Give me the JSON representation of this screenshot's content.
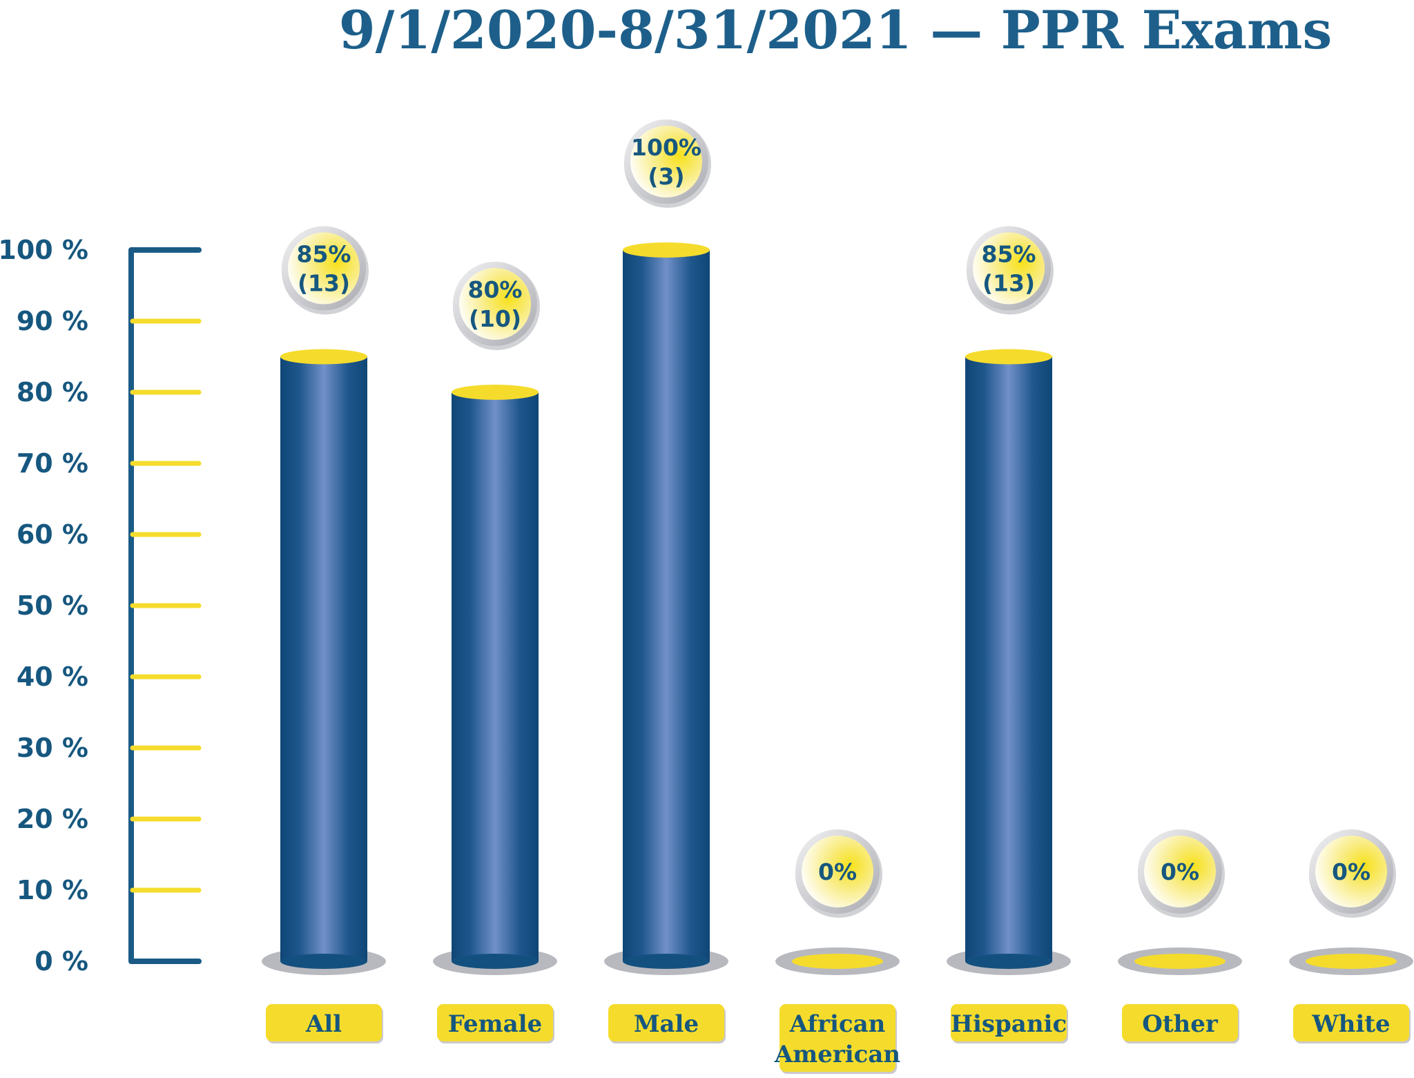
{
  "chart_data": {
    "type": "bar",
    "title": "9/1/2020-8/31/2021 — PPR Exams",
    "categories": [
      "All",
      "Female",
      "Male",
      "African American",
      "Hispanic",
      "Other",
      "White"
    ],
    "category_lines": [
      [
        "All"
      ],
      [
        "Female"
      ],
      [
        "Male"
      ],
      [
        "African",
        "American"
      ],
      [
        "Hispanic"
      ],
      [
        "Other"
      ],
      [
        "White"
      ]
    ],
    "values": [
      85,
      80,
      100,
      0,
      85,
      0,
      0
    ],
    "bubble_labels": [
      [
        "85%",
        "(13)"
      ],
      [
        "80%",
        "(10)"
      ],
      [
        "100%",
        "(3)"
      ],
      [
        "0%"
      ],
      [
        "85%",
        "(13)"
      ],
      [
        "0%"
      ],
      [
        "0%"
      ]
    ],
    "yticks": [
      "0 %",
      "10 %",
      "20 %",
      "30 %",
      "40 %",
      "50 %",
      "60 %",
      "70 %",
      "80 %",
      "90 %",
      "100 %"
    ],
    "ylim": [
      0,
      100
    ],
    "grid": false,
    "colors": {
      "bar": "#14507f",
      "bar_highlight": "#6e8fc8",
      "accent": "#f5dc2c",
      "axis": "#1a5b86",
      "text": "#16577f",
      "shadow": "#b8b9bf"
    }
  }
}
